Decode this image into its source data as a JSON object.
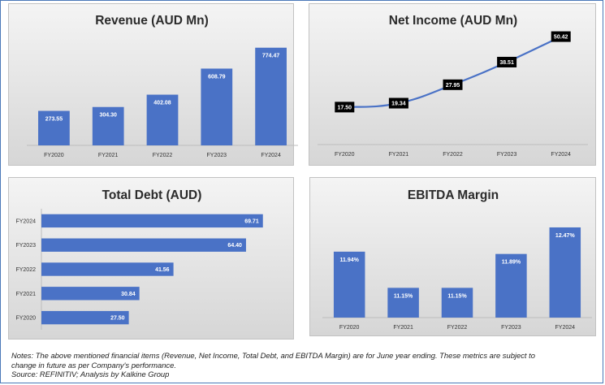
{
  "chart_data": [
    {
      "type": "bar",
      "title": "Revenue (AUD Mn)",
      "categories": [
        "FY2020",
        "FY2021",
        "FY2022",
        "FY2023",
        "FY2024"
      ],
      "values": [
        273.55,
        304.3,
        402.08,
        608.79,
        774.47
      ],
      "value_labels": [
        "273.55",
        "304.30",
        "402.08",
        "608.79",
        "774.47"
      ],
      "ylim": [
        0,
        850
      ],
      "grid": false,
      "color": "#4a72c6"
    },
    {
      "type": "line",
      "title": "Net Income (AUD Mn)",
      "categories": [
        "FY2020",
        "FY2021",
        "FY2022",
        "FY2023",
        "FY2024"
      ],
      "values": [
        17.5,
        19.34,
        27.95,
        38.51,
        50.42
      ],
      "value_labels": [
        "17.50",
        "19.34",
        "27.95",
        "38.51",
        "50.42"
      ],
      "ylim": [
        0,
        55
      ],
      "grid": false,
      "color": "#4a72c6"
    },
    {
      "type": "bar",
      "orientation": "horizontal",
      "title": "Total Debt (AUD)",
      "categories": [
        "FY2024",
        "FY2023",
        "FY2022",
        "FY2021",
        "FY2020"
      ],
      "values": [
        69.71,
        64.4,
        41.56,
        30.84,
        27.5
      ],
      "value_labels": [
        "69.71",
        "64.40",
        "41.56",
        "30.84",
        "27.50"
      ],
      "xlim": [
        0,
        80
      ],
      "grid": false,
      "color": "#4a72c6"
    },
    {
      "type": "bar",
      "title": "EBITDA Margin",
      "categories": [
        "FY2020",
        "FY2021",
        "FY2022",
        "FY2023",
        "FY2024"
      ],
      "values": [
        11.94,
        11.15,
        11.15,
        11.89,
        12.47
      ],
      "value_labels": [
        "11.94%",
        "11.15%",
        "11.15%",
        "11.89%",
        "12.47%"
      ],
      "ylim": [
        10.5,
        12.7
      ],
      "grid": false,
      "color": "#4a72c6"
    }
  ],
  "notes": {
    "line1": "Notes: The above mentioned financial items (Revenue, Net Income, Total Debt, and EBITDA Margin) are for June year ending. These metrics are subject to",
    "line2": "change in future as per Company's performance.",
    "line3": "Source: REFINITIV; Analysis by Kalkine Group"
  }
}
